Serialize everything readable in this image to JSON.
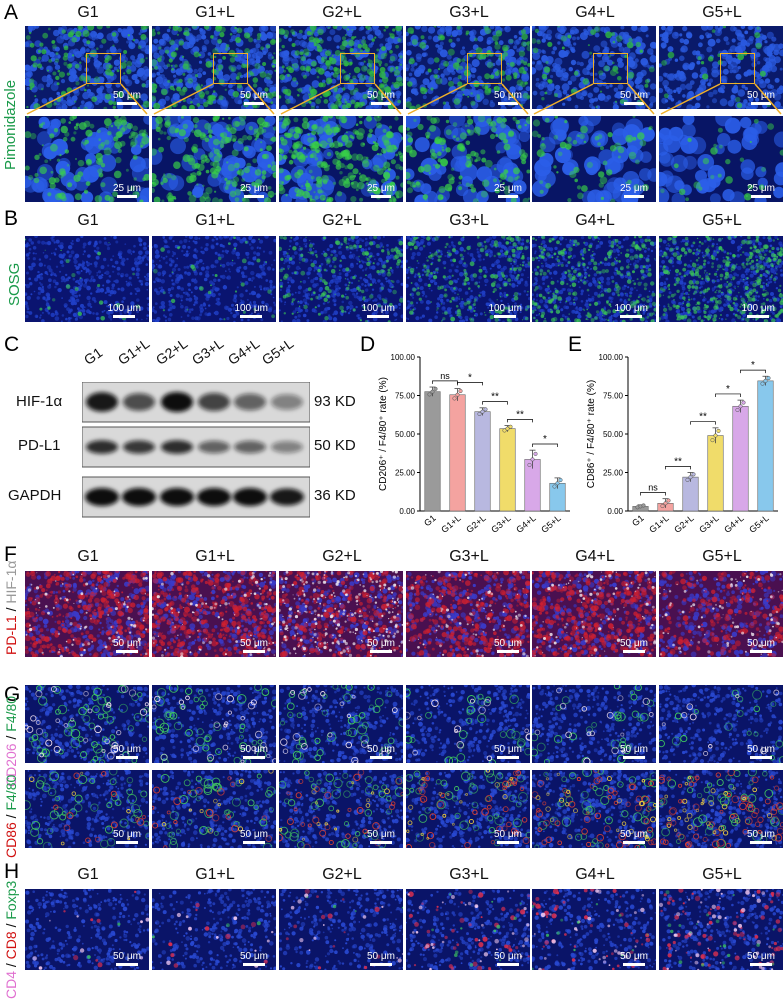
{
  "groups": [
    "G1",
    "G1+L",
    "G2+L",
    "G3+L",
    "G4+L",
    "G5+L"
  ],
  "panels": {
    "A": {
      "letter": "A",
      "stain": "Pimonidazole",
      "scale_top": "50 μm",
      "scale_bottom": "25 μm",
      "stain_color": "#1a9a4a"
    },
    "B": {
      "letter": "B",
      "stain": "SOSG",
      "scale": "100 μm",
      "stain_color": "#1a9a4a"
    },
    "C": {
      "letter": "C",
      "proteins": [
        {
          "name": "HIF-1α",
          "kd": "93 KD"
        },
        {
          "name": "PD-L1",
          "kd": "50 KD"
        },
        {
          "name": "GAPDH",
          "kd": "36 KD"
        }
      ]
    },
    "D": {
      "letter": "D"
    },
    "E": {
      "letter": "E"
    },
    "F": {
      "letter": "F",
      "stain_a": "PD-L1",
      "stain_sep": " / ",
      "stain_b": "HIF-1α",
      "scale": "50 μm"
    },
    "G": {
      "letter": "G",
      "row1_a": "CD206",
      "row1_sep": " / ",
      "row1_b": "F4/80",
      "row2_a": "CD86",
      "row2_sep": " / ",
      "row2_b": "F4/80",
      "scale": "50 μm"
    },
    "H": {
      "letter": "H",
      "stain_a": "CD4",
      "sep1": " / ",
      "stain_b": "CD8",
      "sep2": " / ",
      "stain_c": "Foxp3",
      "scale": "50 μm",
      "scale_g4": "50 μm"
    }
  },
  "chart_data": [
    {
      "type": "bar",
      "panel": "D",
      "categories": [
        "G1",
        "G1+L",
        "G2+L",
        "G3+L",
        "G4+L",
        "G5+L"
      ],
      "values": [
        77.5,
        75.5,
        64.5,
        53.5,
        33.5,
        18
      ],
      "errors": [
        3,
        4,
        2.5,
        2,
        6,
        3.5
      ],
      "colors": [
        "#9a9a9a",
        "#f4a3a0",
        "#b8b8e0",
        "#f0dc6a",
        "#d8a8e8",
        "#88c8ec"
      ],
      "ylabel": "CD206⁺ / F4/80⁺ rate (%)",
      "yticks": [
        "0.00",
        "25.00",
        "50.00",
        "75.00",
        "100.00"
      ],
      "ylim": [
        0,
        100
      ],
      "significance": [
        {
          "from": 0,
          "to": 1,
          "label": "ns"
        },
        {
          "from": 1,
          "to": 2,
          "label": "*"
        },
        {
          "from": 2,
          "to": 3,
          "label": "**"
        },
        {
          "from": 3,
          "to": 4,
          "label": "**"
        },
        {
          "from": 4,
          "to": 5,
          "label": "*"
        }
      ]
    },
    {
      "type": "bar",
      "panel": "E",
      "categories": [
        "G1",
        "G1+L",
        "G2+L",
        "G3+L",
        "G4+L",
        "G5+L"
      ],
      "values": [
        3,
        5,
        22,
        49,
        68,
        84.5
      ],
      "errors": [
        1,
        3,
        3,
        5,
        4,
        3
      ],
      "colors": [
        "#9a9a9a",
        "#f4a3a0",
        "#b8b8e0",
        "#f0dc6a",
        "#d8a8e8",
        "#88c8ec"
      ],
      "ylabel": "CD86⁺ / F4/80⁺ rate (%)",
      "yticks": [
        "0.00",
        "25.00",
        "50.00",
        "75.00",
        "100.00"
      ],
      "ylim": [
        0,
        100
      ],
      "significance": [
        {
          "from": 0,
          "to": 1,
          "label": "ns"
        },
        {
          "from": 1,
          "to": 2,
          "label": "**"
        },
        {
          "from": 2,
          "to": 3,
          "label": "**"
        },
        {
          "from": 3,
          "to": 4,
          "label": "*"
        },
        {
          "from": 4,
          "to": 5,
          "label": "*"
        }
      ]
    }
  ]
}
